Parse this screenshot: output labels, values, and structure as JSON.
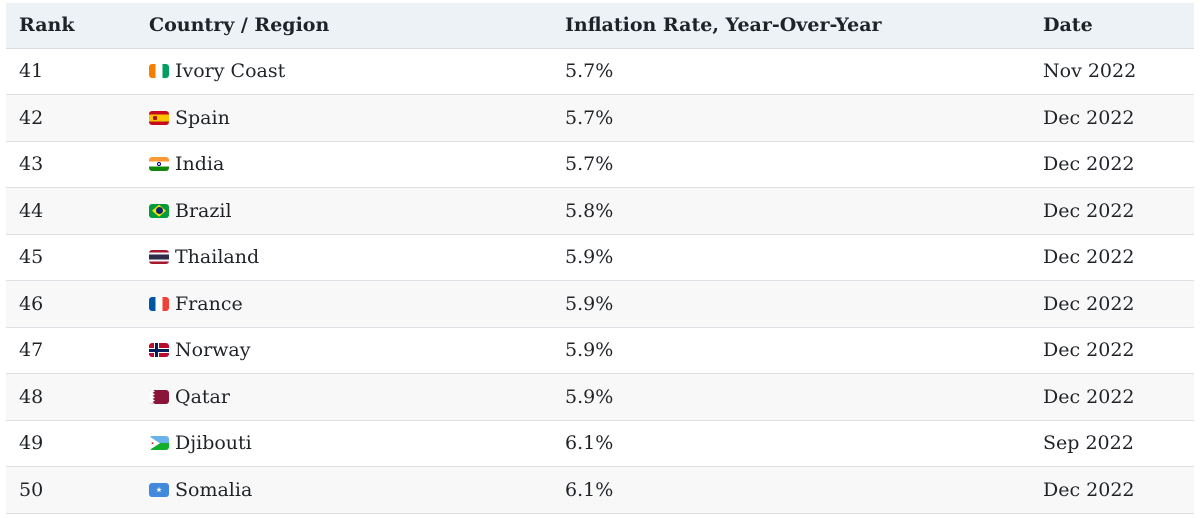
{
  "table": {
    "headers": {
      "rank": "Rank",
      "country": "Country / Region",
      "rate": "Inflation Rate, Year-Over-Year",
      "date": "Date"
    },
    "rows": [
      {
        "rank": "41",
        "country": "Ivory Coast",
        "flag": "ivory-coast-flag-icon",
        "rate": "5.7%",
        "date": "Nov 2022"
      },
      {
        "rank": "42",
        "country": "Spain",
        "flag": "spain-flag-icon",
        "rate": "5.7%",
        "date": "Dec 2022"
      },
      {
        "rank": "43",
        "country": "India",
        "flag": "india-flag-icon",
        "rate": "5.7%",
        "date": "Dec 2022"
      },
      {
        "rank": "44",
        "country": "Brazil",
        "flag": "brazil-flag-icon",
        "rate": "5.8%",
        "date": "Dec 2022"
      },
      {
        "rank": "45",
        "country": "Thailand",
        "flag": "thailand-flag-icon",
        "rate": "5.9%",
        "date": "Dec 2022"
      },
      {
        "rank": "46",
        "country": "France",
        "flag": "france-flag-icon",
        "rate": "5.9%",
        "date": "Dec 2022"
      },
      {
        "rank": "47",
        "country": "Norway",
        "flag": "norway-flag-icon",
        "rate": "5.9%",
        "date": "Dec 2022"
      },
      {
        "rank": "48",
        "country": "Qatar",
        "flag": "qatar-flag-icon",
        "rate": "5.9%",
        "date": "Dec 2022"
      },
      {
        "rank": "49",
        "country": "Djibouti",
        "flag": "djibouti-flag-icon",
        "rate": "6.1%",
        "date": "Sep 2022"
      },
      {
        "rank": "50",
        "country": "Somalia",
        "flag": "somalia-flag-icon",
        "rate": "6.1%",
        "date": "Dec 2022"
      }
    ]
  },
  "colors": {
    "header_bg": "#edf2f7",
    "row_alt_bg": "#f8f8f8",
    "border": "#dcdfe3",
    "text": "#1f2328"
  }
}
